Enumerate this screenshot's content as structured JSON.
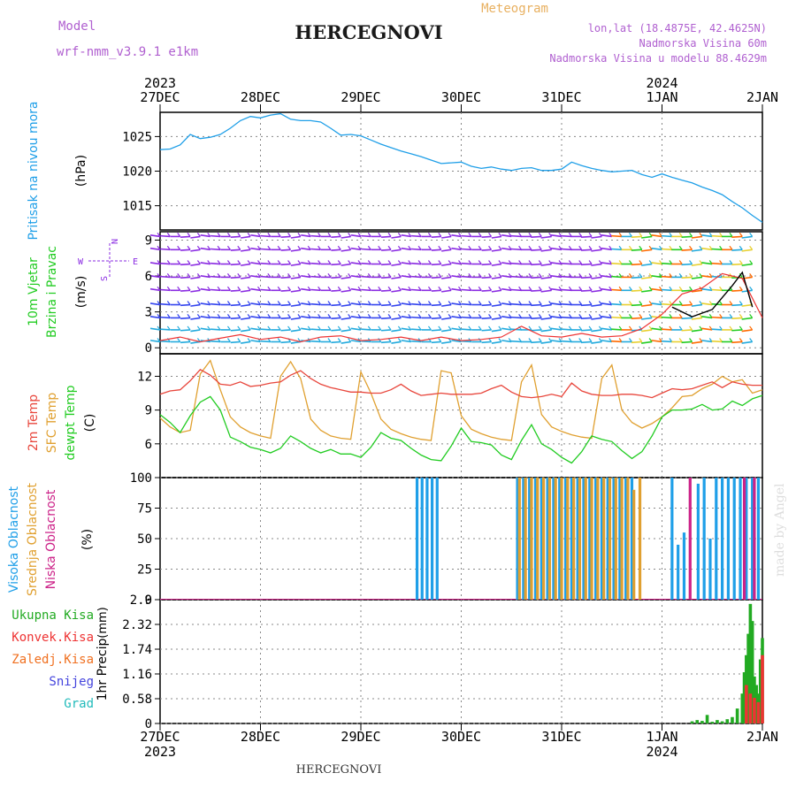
{
  "header": {
    "model_label": "Model",
    "model_name": "wrf-nmm_v3.9.1 e1km",
    "title": "HERCEGNOVI",
    "meteogram_label": "Meteogram",
    "coords": "lon,lat (18.4875E, 42.4625N)",
    "elevation": "Nadmorska Visina 60m",
    "model_elevation": "Nadmorska Visina u modelu 88.4629m",
    "footer_title": "HERCEGNOVI",
    "credit": "made by Angel"
  },
  "colors": {
    "pressure": "#1f9fe8",
    "temp2m": "#e8463c",
    "sfc": "#e0a030",
    "dewpt": "#22cc22",
    "high_cloud": "#1f9fe8",
    "mid_cloud": "#e0a030",
    "low_cloud": "#cc2288",
    "total_precip": "#22aa22",
    "conv_precip": "#ee3333",
    "freezing": "#f07020",
    "snow": "#4444dd",
    "hail": "#22bbbb",
    "wind_purple": "#8a2be2",
    "wind_blue": "#3344ee",
    "wind_cyan": "#22aadd",
    "header_purple": "#b060d0",
    "header_orange": "#e8b060"
  },
  "time_axis": {
    "top_labels": [
      "27DEC",
      "28DEC",
      "29DEC",
      "30DEC",
      "31DEC",
      "1JAN",
      "2JAN"
    ],
    "top_years": [
      "2023",
      "2024"
    ],
    "bottom_labels": [
      "27DEC",
      "28DEC",
      "29DEC",
      "30DEC",
      "31DEC",
      "1JAN",
      "2JAN"
    ],
    "bottom_years": [
      "2023",
      "2024"
    ]
  },
  "chart_data": [
    {
      "type": "line",
      "ylabel_main": "Pritisak na nivou mora",
      "unit": "(hPa)",
      "yticks": [
        "1025",
        "1020",
        "1015"
      ],
      "ylim": [
        1011.5,
        1028.5
      ],
      "series": [
        {
          "x": [
            0,
            0.1,
            0.2,
            0.3,
            0.4,
            0.5,
            0.6,
            0.7,
            0.8,
            0.9,
            1.0,
            1.1,
            1.2,
            1.3,
            1.4,
            1.5,
            1.6,
            1.7,
            1.8,
            1.9,
            2.0,
            2.1,
            2.2,
            2.3,
            2.4,
            2.5,
            2.6,
            2.7,
            2.8,
            2.9,
            3.0,
            3.1,
            3.2,
            3.3,
            3.4,
            3.5,
            3.6,
            3.7,
            3.8,
            3.9,
            4.0,
            4.1,
            4.2,
            4.3,
            4.4,
            4.5,
            4.6,
            4.7,
            4.8,
            4.9,
            5.0,
            5.1,
            5.2,
            5.3,
            5.4,
            5.5,
            5.6,
            5.7,
            5.8,
            5.9,
            6.0
          ],
          "y": [
            1023.1,
            1023.2,
            1023.8,
            1025.3,
            1024.7,
            1024.9,
            1025.3,
            1026.2,
            1027.3,
            1027.9,
            1027.7,
            1028.1,
            1028.3,
            1027.5,
            1027.3,
            1027.3,
            1027.1,
            1026.2,
            1025.2,
            1025.3,
            1025.1,
            1024.5,
            1023.9,
            1023.4,
            1022.9,
            1022.5,
            1022.1,
            1021.6,
            1021.1,
            1021.2,
            1021.3,
            1020.7,
            1020.4,
            1020.6,
            1020.3,
            1020.1,
            1020.4,
            1020.5,
            1020.1,
            1020.1,
            1020.3,
            1021.3,
            1020.8,
            1020.4,
            1020.1,
            1019.9,
            1020.0,
            1020.1,
            1019.5,
            1019.1,
            1019.6,
            1019.1,
            1018.7,
            1018.3,
            1017.7,
            1017.2,
            1016.6,
            1015.6,
            1014.7,
            1013.6,
            1012.6
          ]
        }
      ]
    },
    {
      "type": "line",
      "ylabel_main": "10m Vjetar",
      "ylabel_sub": "Brzina i Pravac",
      "unit": "(m/s)",
      "yticks": [
        "9",
        "6",
        "3",
        "0"
      ],
      "ylim": [
        -0.5,
        9.7
      ],
      "compass": {
        "n": "N",
        "s": "S",
        "e": "E",
        "w": "W"
      },
      "series": [
        {
          "name": "",
          "x": [
            0,
            0.2,
            0.4,
            0.6,
            0.8,
            1.0,
            1.2,
            1.4,
            1.6,
            1.8,
            2.0,
            2.2,
            2.4,
            2.6,
            2.8,
            3.0,
            3.2,
            3.4,
            3.6,
            3.8,
            4.0,
            4.2,
            4.4,
            4.6,
            4.8,
            5.0,
            5.2,
            5.4,
            5.6,
            5.8,
            6.0
          ],
          "y": [
            0.6,
            0.9,
            0.5,
            0.8,
            1.1,
            0.7,
            0.9,
            0.5,
            0.9,
            1.0,
            0.6,
            0.7,
            0.9,
            0.6,
            0.9,
            0.6,
            0.7,
            0.9,
            1.8,
            1.0,
            0.9,
            1.2,
            0.9,
            1.0,
            1.6,
            2.8,
            4.5,
            5.0,
            6.2,
            5.8,
            2.5
          ]
        },
        {
          "name": "",
          "x": [
            5.1,
            5.3,
            5.5,
            5.6,
            5.7,
            5.8,
            5.9
          ],
          "y": [
            3.4,
            2.6,
            3.2,
            4.2,
            5.2,
            6.3,
            3.4
          ]
        }
      ]
    },
    {
      "type": "line",
      "ylabel_main": "2m Temp",
      "ylabel_sub": "SFC Temp",
      "ylabel_sub2": "dewpt Temp",
      "unit": "(C)",
      "yticks": [
        "12",
        "9",
        "6"
      ],
      "ylim": [
        3.0,
        14.0
      ],
      "series": [
        {
          "name": "2m Temp",
          "x": [
            0,
            0.1,
            0.2,
            0.3,
            0.4,
            0.5,
            0.6,
            0.7,
            0.8,
            0.9,
            1.0,
            1.1,
            1.2,
            1.3,
            1.4,
            1.5,
            1.6,
            1.7,
            1.8,
            1.9,
            2.0,
            2.1,
            2.2,
            2.3,
            2.4,
            2.5,
            2.6,
            2.7,
            2.8,
            2.9,
            3.0,
            3.1,
            3.2,
            3.3,
            3.4,
            3.5,
            3.6,
            3.7,
            3.8,
            3.9,
            4.0,
            4.1,
            4.2,
            4.3,
            4.4,
            4.5,
            4.6,
            4.7,
            4.8,
            4.9,
            5.0,
            5.1,
            5.2,
            5.3,
            5.4,
            5.5,
            5.6,
            5.7,
            5.8,
            5.9,
            6.0
          ],
          "y": [
            10.4,
            10.7,
            10.8,
            11.6,
            12.6,
            12.1,
            11.3,
            11.2,
            11.5,
            11.1,
            11.2,
            11.4,
            11.5,
            12.1,
            12.5,
            11.8,
            11.3,
            11.0,
            10.8,
            10.6,
            10.6,
            10.5,
            10.5,
            10.8,
            11.3,
            10.7,
            10.3,
            10.4,
            10.5,
            10.4,
            10.4,
            10.4,
            10.5,
            10.9,
            11.2,
            10.6,
            10.2,
            10.1,
            10.2,
            10.4,
            10.2,
            11.4,
            10.7,
            10.4,
            10.3,
            10.3,
            10.4,
            10.4,
            10.3,
            10.1,
            10.5,
            10.9,
            10.8,
            10.9,
            11.2,
            11.5,
            11.0,
            11.5,
            11.3,
            11.2,
            11.2
          ]
        },
        {
          "name": "SFC Temp",
          "x": [
            0,
            0.1,
            0.2,
            0.3,
            0.4,
            0.5,
            0.6,
            0.7,
            0.8,
            0.9,
            1.0,
            1.1,
            1.2,
            1.3,
            1.4,
            1.5,
            1.6,
            1.7,
            1.8,
            1.9,
            2.0,
            2.1,
            2.2,
            2.3,
            2.4,
            2.5,
            2.6,
            2.7,
            2.8,
            2.9,
            3.0,
            3.1,
            3.2,
            3.3,
            3.4,
            3.5,
            3.6,
            3.7,
            3.8,
            3.9,
            4.0,
            4.1,
            4.2,
            4.3,
            4.4,
            4.5,
            4.6,
            4.7,
            4.8,
            4.9,
            5.0,
            5.1,
            5.2,
            5.3,
            5.4,
            5.5,
            5.6,
            5.7,
            5.8,
            5.9,
            6.0
          ],
          "y": [
            8.3,
            7.5,
            7.0,
            7.2,
            12.2,
            13.4,
            10.8,
            8.4,
            7.5,
            7.0,
            6.7,
            6.5,
            12.0,
            13.3,
            11.8,
            8.2,
            7.2,
            6.7,
            6.5,
            6.4,
            12.4,
            10.5,
            8.2,
            7.3,
            6.9,
            6.6,
            6.4,
            6.3,
            12.5,
            12.3,
            8.5,
            7.3,
            6.9,
            6.6,
            6.4,
            6.3,
            11.5,
            13.0,
            8.6,
            7.5,
            7.1,
            6.8,
            6.6,
            6.5,
            11.8,
            13.0,
            9.0,
            7.9,
            7.4,
            7.8,
            8.4,
            9.2,
            10.2,
            10.3,
            10.9,
            11.3,
            12.0,
            11.5,
            11.7,
            10.5,
            10.8
          ]
        },
        {
          "name": "dewpt Temp",
          "x": [
            0,
            0.1,
            0.2,
            0.3,
            0.4,
            0.5,
            0.6,
            0.7,
            0.8,
            0.9,
            1.0,
            1.1,
            1.2,
            1.3,
            1.4,
            1.5,
            1.6,
            1.7,
            1.8,
            1.9,
            2.0,
            2.1,
            2.2,
            2.3,
            2.4,
            2.5,
            2.6,
            2.7,
            2.8,
            2.9,
            3.0,
            3.1,
            3.2,
            3.3,
            3.4,
            3.5,
            3.6,
            3.7,
            3.8,
            3.9,
            4.0,
            4.1,
            4.2,
            4.3,
            4.4,
            4.5,
            4.6,
            4.7,
            4.8,
            4.9,
            5.0,
            5.1,
            5.2,
            5.3,
            5.4,
            5.5,
            5.6,
            5.7,
            5.8,
            5.9,
            6.0
          ],
          "y": [
            8.6,
            7.9,
            7.0,
            8.5,
            9.7,
            10.2,
            9.0,
            6.6,
            6.2,
            5.7,
            5.5,
            5.2,
            5.6,
            6.7,
            6.2,
            5.6,
            5.2,
            5.5,
            5.1,
            5.1,
            4.8,
            5.7,
            7.0,
            6.5,
            6.3,
            5.6,
            5.0,
            4.6,
            4.5,
            5.8,
            7.4,
            6.2,
            6.1,
            5.9,
            5.0,
            4.6,
            6.3,
            7.7,
            6.0,
            5.5,
            4.8,
            4.3,
            5.3,
            6.7,
            6.4,
            6.2,
            5.4,
            4.7,
            5.3,
            6.7,
            8.4,
            9.0,
            9.0,
            9.1,
            9.5,
            9.0,
            9.1,
            9.8,
            9.4,
            10.0,
            10.3
          ]
        }
      ]
    },
    {
      "type": "bar",
      "ylabel_main": "Visoka Oblacnost",
      "ylabel_sub": "Srednja Oblacnost",
      "ylabel_sub2": "Niska Oblacnost",
      "unit": "(%)",
      "yticks": [
        "100",
        "75",
        "50",
        "25",
        "0"
      ],
      "ylim": [
        0,
        100
      ],
      "series": [
        {
          "name": "Visoka Oblacnost",
          "x": [
            2.56,
            2.61,
            2.66,
            2.71,
            2.76,
            3.56,
            3.62,
            3.68,
            3.74,
            3.8,
            3.86,
            3.92,
            3.98,
            4.04,
            4.1,
            4.16,
            4.22,
            4.28,
            4.34,
            4.4,
            4.46,
            4.52,
            4.58,
            4.64,
            4.7,
            5.1,
            5.16,
            5.22,
            5.36,
            5.42,
            5.48,
            5.54,
            5.6,
            5.66,
            5.72,
            5.78,
            5.84,
            5.9,
            5.96
          ],
          "y": [
            100,
            100,
            100,
            100,
            100,
            100,
            100,
            100,
            100,
            100,
            100,
            100,
            100,
            100,
            100,
            100,
            100,
            100,
            100,
            100,
            100,
            100,
            100,
            100,
            100,
            100,
            45,
            55,
            95,
            100,
            50,
            100,
            100,
            100,
            100,
            100,
            100,
            100,
            100
          ]
        },
        {
          "name": "Srednja Oblacnost",
          "x": [
            3.58,
            3.64,
            3.7,
            3.76,
            3.82,
            3.88,
            3.94,
            4.0,
            4.06,
            4.12,
            4.18,
            4.24,
            4.3,
            4.36,
            4.42,
            4.48,
            4.54,
            4.6,
            4.66,
            4.72,
            4.78
          ],
          "y": [
            100,
            100,
            100,
            100,
            100,
            100,
            100,
            100,
            100,
            100,
            100,
            100,
            100,
            100,
            100,
            100,
            100,
            100,
            100,
            90,
            100
          ]
        },
        {
          "name": "Niska Oblacnost",
          "x": [
            5.28,
            5.82,
            5.92
          ],
          "y": [
            100,
            100,
            100
          ]
        }
      ]
    },
    {
      "type": "bar",
      "ylabel_main": "1hr Precip",
      "unit": "(mm)",
      "yticks": [
        "2.9",
        "2.32",
        "1.74",
        "1.16",
        "0.58",
        "0"
      ],
      "ylim": [
        0,
        2.9
      ],
      "legend": [
        "Ukupna Kisa",
        "Konvek.Kisa",
        "Zaledj.Kisa",
        "Snijeg",
        "Grad"
      ],
      "series": [
        {
          "name": "Ukupna Kisa",
          "x": [
            5.3,
            5.35,
            5.4,
            5.45,
            5.5,
            5.55,
            5.6,
            5.65,
            5.7,
            5.75,
            5.8,
            5.82,
            5.84,
            5.86,
            5.88,
            5.9,
            5.92,
            5.94,
            5.96,
            5.98,
            6.0
          ],
          "y": [
            0.05,
            0.08,
            0.06,
            0.2,
            0.04,
            0.08,
            0.05,
            0.1,
            0.15,
            0.35,
            0.7,
            1.2,
            1.6,
            2.1,
            2.8,
            2.4,
            1.1,
            0.9,
            0.7,
            1.5,
            2.0
          ]
        },
        {
          "name": "Konvek.Kisa",
          "x": [
            5.84,
            5.88,
            5.92,
            5.96,
            6.0
          ],
          "y": [
            0.9,
            0.7,
            0.6,
            0.5,
            1.6
          ]
        }
      ]
    }
  ]
}
